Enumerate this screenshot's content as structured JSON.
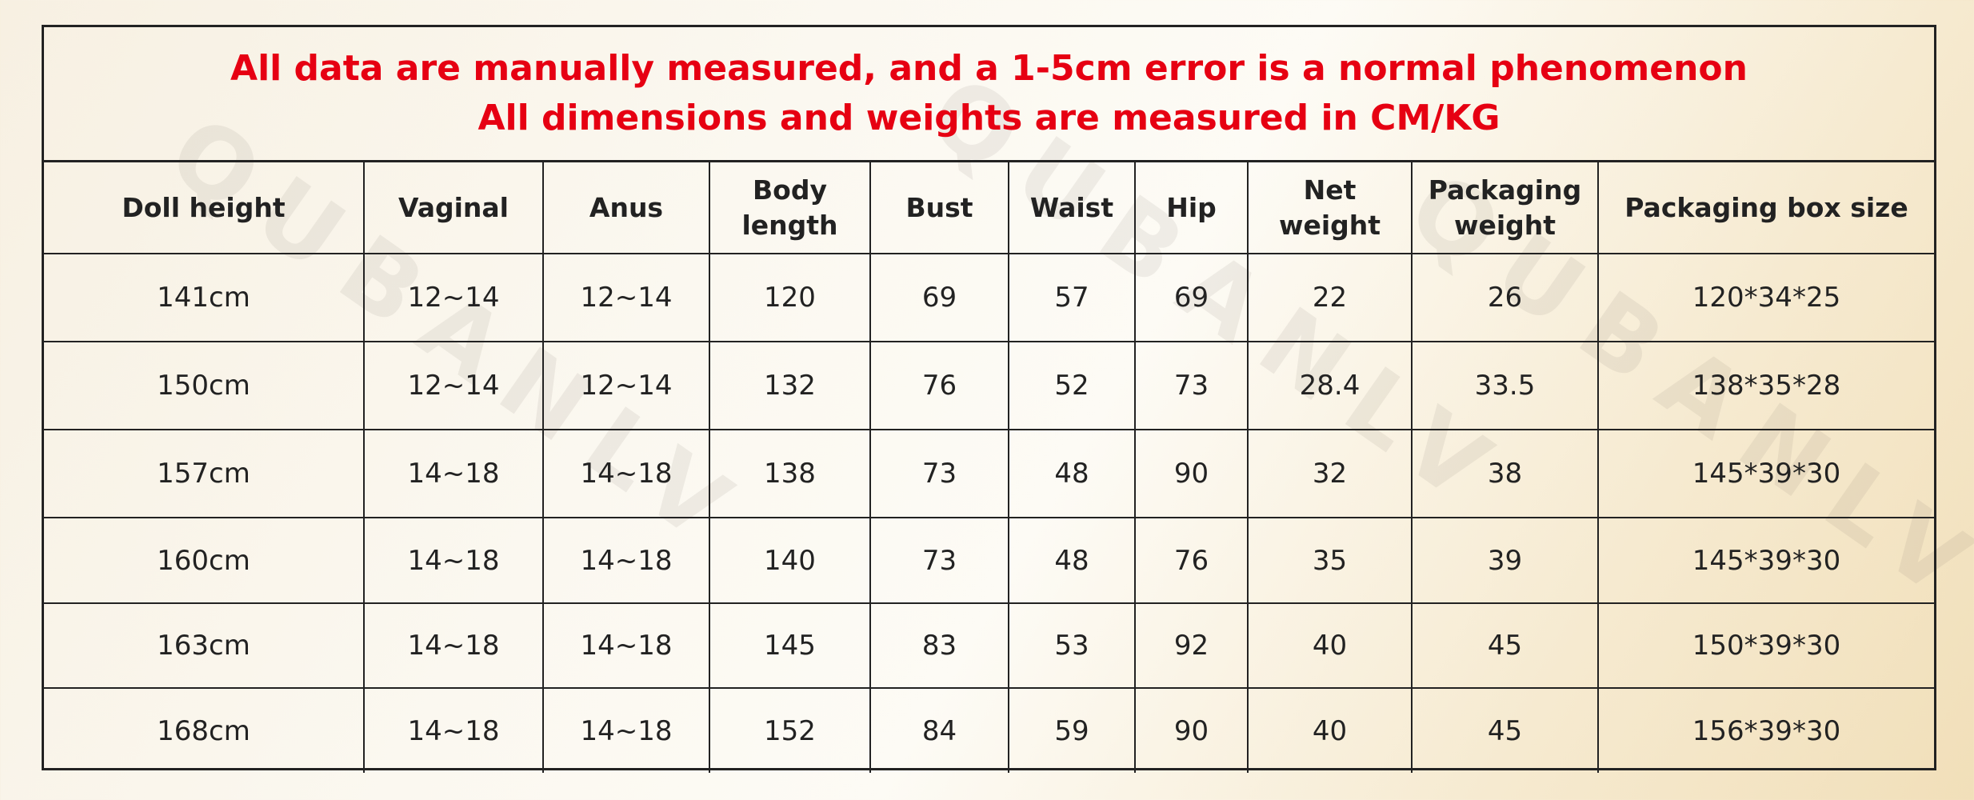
{
  "watermark": "QUBANLV",
  "banner": {
    "line1": "All data are manually measured, and a 1-5cm error is a normal phenomenon",
    "line2": "All dimensions and weights are measured in CM/KG",
    "color": "#e60012"
  },
  "columns": [
    "Doll height",
    "Vaginal",
    "Anus",
    "Body\nlength",
    "Bust",
    "Waist",
    "Hip",
    "Net\nweight",
    "Packaging\nweight",
    "Packaging box size"
  ],
  "rows": [
    [
      "141cm",
      "12~14",
      "12~14",
      "120",
      "69",
      "57",
      "69",
      "22",
      "26",
      "120*34*25"
    ],
    [
      "150cm",
      "12~14",
      "12~14",
      "132",
      "76",
      "52",
      "73",
      "28.4",
      "33.5",
      "138*35*28"
    ],
    [
      "157cm",
      "14~18",
      "14~18",
      "138",
      "73",
      "48",
      "90",
      "32",
      "38",
      "145*39*30"
    ],
    [
      "160cm",
      "14~18",
      "14~18",
      "140",
      "73",
      "48",
      "76",
      "35",
      "39",
      "145*39*30"
    ],
    [
      "163cm",
      "14~18",
      "14~18",
      "145",
      "83",
      "53",
      "92",
      "40",
      "45",
      "150*39*30"
    ],
    [
      "168cm",
      "14~18",
      "14~18",
      "152",
      "84",
      "59",
      "90",
      "40",
      "45",
      "156*39*30"
    ]
  ]
}
